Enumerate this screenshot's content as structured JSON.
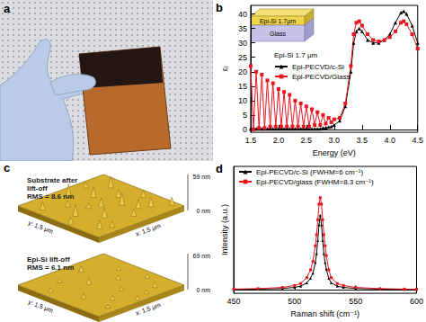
{
  "panel_labels": [
    "a",
    "b",
    "c",
    "d"
  ],
  "afm": [
    {
      "title": [
        "Substrate after",
        "lift-off"
      ],
      "rms": "RMS = 8.6 nm",
      "z_max": "59 nm",
      "z_min": "0 nm",
      "x_axis": "x: 1.5 μm",
      "y_axis": "y: 1.5 μm"
    },
    {
      "title": [
        "Epi-Si lift-off"
      ],
      "rms": "RMS = 6.1 nm",
      "z_max": "69 nm",
      "z_min": "0 nm",
      "x_axis": "x: 1.5 μm",
      "y_axis": "y: 1.5 μm"
    }
  ],
  "chart_data": [
    {
      "type": "line",
      "xlabel": "Energy (eV)",
      "ylabel": "εᵢ",
      "annotations": [
        "Epi-Si 1.7 μm"
      ],
      "inset": {
        "top": "Epi-Si 1.7μm",
        "bottom": "Glass"
      },
      "legend": "left",
      "x": [
        1.5,
        1.55,
        1.6,
        1.65,
        1.7,
        1.75,
        1.8,
        1.85,
        1.9,
        1.95,
        2.0,
        2.05,
        2.1,
        2.15,
        2.2,
        2.25,
        2.3,
        2.35,
        2.4,
        2.45,
        2.5,
        2.55,
        2.6,
        2.65,
        2.7,
        2.75,
        2.8,
        2.85,
        2.9,
        2.95,
        3.0,
        3.1,
        3.2,
        3.3,
        3.35,
        3.4,
        3.45,
        3.5,
        3.6,
        3.7,
        3.8,
        3.9,
        4.0,
        4.1,
        4.2,
        4.25,
        4.3,
        4.4,
        4.5
      ],
      "series": [
        {
          "name": "Epi-PECVD/c-Si",
          "color": "#000000",
          "marker": "triangle",
          "values": [
            0.2,
            0.2,
            0.2,
            0.2,
            0.2,
            0.2,
            0.2,
            0.2,
            0.2,
            0.2,
            0.2,
            0.2,
            0.2,
            0.2,
            0.2,
            0.2,
            0.2,
            0.2,
            0.2,
            0.2,
            0.2,
            0.2,
            0.2,
            0.2,
            0.2,
            0.2,
            0.5,
            0.6,
            0.8,
            1,
            1.5,
            3,
            8,
            20,
            30,
            34,
            35,
            34,
            31,
            30,
            30,
            31,
            33,
            37,
            40.5,
            41,
            40,
            36,
            30
          ]
        },
        {
          "name": "Epi-PECVD/Glass",
          "color": "#e8141e",
          "marker": "square",
          "values": [
            22,
            0,
            20,
            0.5,
            19,
            0.5,
            17,
            1,
            16,
            1,
            14,
            1,
            13,
            1,
            12,
            1,
            10,
            1,
            9,
            1,
            8,
            1,
            7,
            1.5,
            6,
            1.5,
            5,
            2,
            4,
            2.5,
            3.5,
            4,
            9,
            22,
            33,
            37,
            37.5,
            36,
            33,
            31,
            30.5,
            31,
            32,
            34,
            37,
            37.5,
            36.5,
            33,
            28
          ]
        }
      ],
      "xlim": [
        1.5,
        4.5
      ],
      "xticks": [
        1.5,
        {
          "value": 2,
          "label": "2.0"
        },
        2.5,
        {
          "value": 3,
          "label": "3.0"
        },
        3.5,
        {
          "value": 4,
          "label": "4.0"
        },
        4.5
      ],
      "ylim": [
        -1,
        43
      ],
      "yticks": [
        0,
        5,
        10,
        15,
        20,
        25,
        30,
        35,
        40
      ]
    },
    {
      "type": "line",
      "xlabel": "Raman shift (cm⁻¹)",
      "ylabel": "Intensity (a.u.)",
      "legend": "upper left",
      "tick_labels": "x",
      "x": [
        450,
        470,
        490,
        500,
        505,
        510,
        513,
        515,
        517,
        518,
        519,
        520,
        521,
        522,
        523,
        524,
        525,
        526,
        528,
        530,
        535,
        540,
        550,
        570,
        590,
        600
      ],
      "series": [
        {
          "name": "Epi-PECVD/c-Si (FWHM=6 cm⁻¹)",
          "color": "#000000",
          "marker": "triangle",
          "values": [
            10,
            15,
            25,
            40,
            60,
            110,
            180,
            260,
            420,
            560,
            760,
            1000,
            1150,
            1000,
            760,
            560,
            420,
            320,
            180,
            110,
            60,
            40,
            25,
            15,
            10,
            10
          ]
        },
        {
          "name": "Epi-PECVD/glass (FWHM=8.3 cm⁻¹)",
          "color": "#e8141e",
          "marker": "square",
          "values": [
            15,
            22,
            40,
            70,
            100,
            190,
            310,
            440,
            680,
            850,
            1080,
            1320,
            1420,
            1320,
            1080,
            850,
            680,
            530,
            310,
            190,
            100,
            70,
            40,
            22,
            15,
            12
          ]
        }
      ],
      "xlim": [
        450,
        600
      ],
      "xticks": [
        450,
        500,
        550,
        600
      ],
      "ylim": [
        -50,
        1900
      ]
    }
  ]
}
